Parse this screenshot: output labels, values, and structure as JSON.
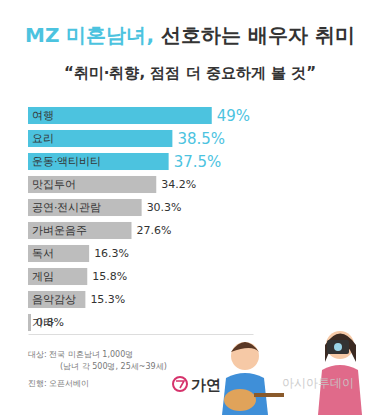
{
  "chart_data": {
    "type": "bar",
    "orientation": "horizontal",
    "title": "MZ 미혼남녀, 선호하는 배우자 취미",
    "subtitle": "“취미·취향, 점점 더 중요하게 볼 것”",
    "categories": [
      "여행",
      "요리",
      "운동·액티비티",
      "맛집투어",
      "공연·전시관람",
      "가벼운음주",
      "독서",
      "게임",
      "음악감상",
      "기타"
    ],
    "values": [
      49,
      38.5,
      37.5,
      34.2,
      30.3,
      27.6,
      16.3,
      15.8,
      15.3,
      0.8
    ],
    "value_labels": [
      "49%",
      "38.5%",
      "37.5%",
      "34.2%",
      "30.3%",
      "27.6%",
      "16.3%",
      "15.8%",
      "15.3%",
      "0.8%"
    ],
    "colors": [
      "#4cc3df",
      "#4cc3df",
      "#4cc3df",
      "#bdbdbd",
      "#bdbdbd",
      "#bdbdbd",
      "#bdbdbd",
      "#bdbdbd",
      "#bdbdbd",
      "#bdbdbd"
    ],
    "data_labels": true,
    "tick_labels": false,
    "grid": false,
    "xlim": [
      0,
      60
    ],
    "xticks": [],
    "notes": [
      "대상: 전국 미혼남녀 1,000명",
      "(남녀 각 500명, 25세~39세)",
      "진행: 오픈서베이"
    ],
    "logo": "가연",
    "watermark": "아시아투데이"
  }
}
